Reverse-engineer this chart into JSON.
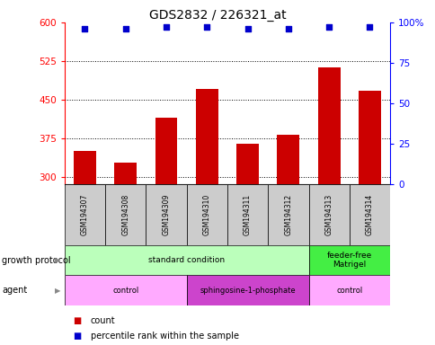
{
  "title": "GDS2832 / 226321_at",
  "samples": [
    "GSM194307",
    "GSM194308",
    "GSM194309",
    "GSM194310",
    "GSM194311",
    "GSM194312",
    "GSM194313",
    "GSM194314"
  ],
  "counts": [
    350,
    328,
    415,
    470,
    365,
    382,
    512,
    468
  ],
  "percentile_ranks": [
    96,
    96,
    97,
    97,
    96,
    96,
    97,
    97
  ],
  "ylim_left": [
    285,
    600
  ],
  "ylim_right": [
    0,
    100
  ],
  "yticks_left": [
    300,
    375,
    450,
    525,
    600
  ],
  "yticks_right": [
    0,
    25,
    50,
    75,
    100
  ],
  "bar_color": "#cc0000",
  "dot_color": "#0000cc",
  "bar_bottom": 285,
  "growth_protocol_groups": [
    {
      "label": "standard condition",
      "start": 0,
      "end": 6,
      "color": "#bbffbb"
    },
    {
      "label": "feeder-free\nMatrigel",
      "start": 6,
      "end": 8,
      "color": "#44ee44"
    }
  ],
  "agent_groups": [
    {
      "label": "control",
      "start": 0,
      "end": 3,
      "color": "#ffaaff"
    },
    {
      "label": "sphingosine-1-phosphate",
      "start": 3,
      "end": 6,
      "color": "#cc44cc"
    },
    {
      "label": "control",
      "start": 6,
      "end": 8,
      "color": "#ffaaff"
    }
  ],
  "legend_count_color": "#cc0000",
  "legend_percentile_color": "#0000cc",
  "fig_width": 4.85,
  "fig_height": 3.84
}
